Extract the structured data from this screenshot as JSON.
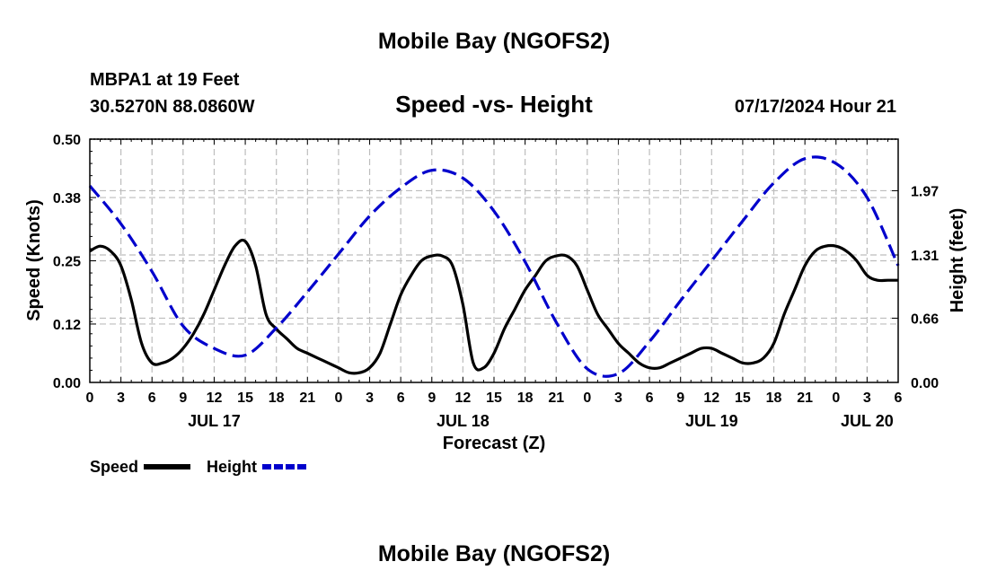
{
  "page": {
    "title_top": "Mobile Bay (NGOFS2)",
    "title_bottom": "Mobile Bay (NGOFS2)"
  },
  "header": {
    "station": "MBPA1 at 19 Feet",
    "coords": "30.5270N  88.0860W",
    "subtitle": "Speed -vs- Height",
    "datetime": "07/17/2024 Hour 21"
  },
  "legend": {
    "items": [
      {
        "label": "Speed",
        "color": "#000000",
        "dash": "solid"
      },
      {
        "label": "Height",
        "color": "#0000cc",
        "dash": "dashed"
      }
    ]
  },
  "chart_data": {
    "type": "line",
    "title": "Speed -vs- Height",
    "xlabel": "Forecast (Z)",
    "ylabel": "Speed (Knots)",
    "y2label": "Height (feet)",
    "x_unit": "hours since JUL 17 00Z",
    "xlim": [
      0,
      78
    ],
    "ylim": [
      0,
      0.5
    ],
    "y2lim": [
      0,
      2.5
    ],
    "x_ticks": [
      0,
      3,
      6,
      9,
      12,
      15,
      18,
      21,
      24,
      27,
      30,
      33,
      36,
      39,
      42,
      45,
      48,
      51,
      54,
      57,
      60,
      63,
      66,
      69,
      72,
      75,
      78
    ],
    "x_tick_labels": [
      "0",
      "3",
      "6",
      "9",
      "12",
      "15",
      "18",
      "21",
      "0",
      "3",
      "6",
      "9",
      "12",
      "15",
      "18",
      "21",
      "0",
      "3",
      "6",
      "9",
      "12",
      "15",
      "18",
      "21",
      "0",
      "3",
      "6"
    ],
    "day_labels": [
      {
        "x": 12,
        "label": "JUL 17"
      },
      {
        "x": 36,
        "label": "JUL 18"
      },
      {
        "x": 60,
        "label": "JUL 19"
      },
      {
        "x": 75,
        "label": "JUL 20"
      }
    ],
    "y_ticks": [
      0.0,
      0.12,
      0.25,
      0.38,
      0.5
    ],
    "y_tick_labels": [
      "0.00",
      "0.12",
      "0.25",
      "0.38",
      "0.50"
    ],
    "y2_ticks": [
      0.0,
      0.66,
      1.31,
      1.97
    ],
    "y2_tick_labels": [
      "0.00",
      "0.66",
      "1.31",
      "1.97"
    ],
    "grid": true,
    "series": [
      {
        "name": "Speed",
        "axis": "left",
        "color": "#000000",
        "x": [
          0,
          1,
          2,
          3,
          4,
          5,
          6,
          7,
          8,
          9,
          10,
          11,
          12,
          13,
          14,
          15,
          16,
          17,
          18,
          19,
          20,
          21,
          22,
          23,
          24,
          25,
          26,
          27,
          28,
          29,
          30,
          31,
          32,
          33,
          34,
          35,
          36,
          37,
          38,
          39,
          40,
          41,
          42,
          43,
          44,
          45,
          46,
          47,
          48,
          49,
          50,
          51,
          52,
          53,
          54,
          55,
          56,
          57,
          58,
          59,
          60,
          61,
          62,
          63,
          64,
          65,
          66,
          67,
          68,
          69,
          70,
          71,
          72,
          73,
          74,
          75,
          76,
          77,
          78
        ],
        "values": [
          0.27,
          0.28,
          0.27,
          0.24,
          0.17,
          0.08,
          0.04,
          0.04,
          0.05,
          0.07,
          0.1,
          0.14,
          0.19,
          0.24,
          0.28,
          0.29,
          0.24,
          0.14,
          0.11,
          0.09,
          0.07,
          0.06,
          0.05,
          0.04,
          0.03,
          0.02,
          0.02,
          0.03,
          0.06,
          0.12,
          0.18,
          0.22,
          0.25,
          0.26,
          0.26,
          0.24,
          0.16,
          0.04,
          0.03,
          0.06,
          0.11,
          0.15,
          0.19,
          0.22,
          0.25,
          0.26,
          0.26,
          0.24,
          0.19,
          0.14,
          0.11,
          0.08,
          0.06,
          0.04,
          0.03,
          0.03,
          0.04,
          0.05,
          0.06,
          0.07,
          0.07,
          0.06,
          0.05,
          0.04,
          0.04,
          0.05,
          0.08,
          0.14,
          0.19,
          0.24,
          0.27,
          0.28,
          0.28,
          0.27,
          0.25,
          0.22,
          0.21,
          0.21,
          0.21
        ]
      },
      {
        "name": "Height",
        "axis": "right",
        "color": "#0000cc",
        "x": [
          0,
          3,
          6,
          9,
          12,
          15,
          18,
          21,
          24,
          27,
          30,
          33,
          36,
          39,
          42,
          45,
          48,
          51,
          54,
          57,
          60,
          63,
          66,
          69,
          72,
          75,
          78
        ],
        "values": [
          2.02,
          1.63,
          1.14,
          0.58,
          0.35,
          0.28,
          0.56,
          0.93,
          1.32,
          1.71,
          2.0,
          2.18,
          2.1,
          1.76,
          1.24,
          0.62,
          0.14,
          0.09,
          0.42,
          0.84,
          1.25,
          1.66,
          2.05,
          2.3,
          2.25,
          1.9,
          1.2
        ]
      }
    ]
  }
}
